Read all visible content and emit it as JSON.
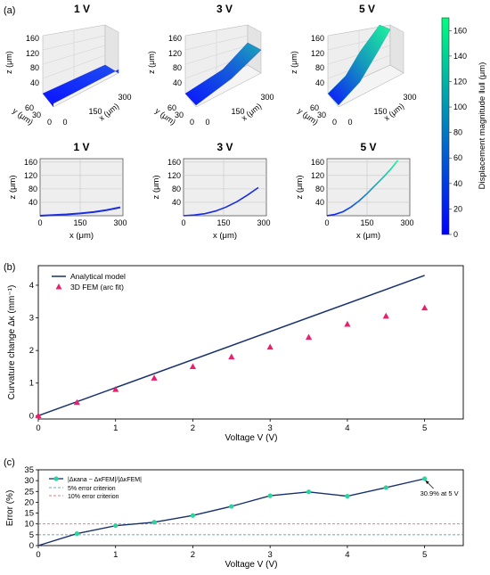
{
  "panel_labels": {
    "a": "(a)",
    "b": "(b)",
    "c": "(c)"
  },
  "panel_a": {
    "top_titles": [
      "1 V",
      "3 V",
      "5 V"
    ],
    "bottom_titles": [
      "1 V",
      "3 V",
      "5 V"
    ],
    "surface3d": {
      "z_ticks": [
        "160",
        "120",
        "80",
        "40"
      ],
      "z_label": "z (μm)",
      "y_ticks": [
        "60",
        "30",
        "0"
      ],
      "y_label": "y (μm)",
      "x_ticks": [
        "0",
        "150",
        "300"
      ],
      "x_label": "x (μm)"
    },
    "profile2d": {
      "z_ticks": [
        "160",
        "120",
        "80",
        "40"
      ],
      "z_label": "z (μm)",
      "x_ticks": [
        "0",
        "150",
        "300"
      ],
      "x_label": "x (μm)"
    },
    "colorbar": {
      "label": "Displacement magnitude ‖u‖ (μm)",
      "ticks": [
        "0",
        "20",
        "40",
        "60",
        "80",
        "100",
        "120",
        "140",
        "160"
      ],
      "range": [
        0,
        170
      ],
      "colors": [
        "#0000ff",
        "#00ff7f"
      ]
    }
  },
  "chart_data": [
    {
      "type": "line",
      "panel": "b",
      "xlabel": "Voltage V (V)",
      "ylabel": "Curvature change Δκ (mm⁻¹)",
      "xlim": [
        0,
        5.5
      ],
      "ylim": [
        -0.1,
        4.6
      ],
      "x_ticks": [
        0,
        1,
        2,
        3,
        4,
        5
      ],
      "y_ticks": [
        0,
        1,
        2,
        3,
        4
      ],
      "legend_position": "top-left",
      "series": [
        {
          "name": "Analytical model",
          "style": "line",
          "color": "#17306e",
          "x": [
            0,
            5
          ],
          "y": [
            0,
            4.3
          ]
        },
        {
          "name": "3D FEM (arc fit)",
          "style": "triangle",
          "color": "#e8216e",
          "x": [
            0,
            0.5,
            1,
            1.5,
            2,
            2.5,
            3,
            3.5,
            4,
            4.5,
            5
          ],
          "y": [
            0,
            0.4,
            0.8,
            1.15,
            1.5,
            1.8,
            2.1,
            2.4,
            2.8,
            3.05,
            3.3
          ]
        }
      ]
    },
    {
      "type": "line",
      "panel": "c",
      "xlabel": "Voltage V (V)",
      "ylabel": "Error (%)",
      "xlim": [
        0,
        5.5
      ],
      "ylim": [
        0,
        35
      ],
      "x_ticks": [
        0,
        1,
        2,
        3,
        4,
        5
      ],
      "y_ticks": [
        0,
        5,
        10,
        15,
        20,
        25,
        30,
        35
      ],
      "legend_position": "top-left",
      "series": [
        {
          "name": "|Δκana − ΔκFEM|/|ΔκFEM|",
          "style": "line-marker",
          "color": "#17306e",
          "marker_color": "#2bd49c",
          "x": [
            0,
            0.5,
            1,
            1.5,
            2,
            2.5,
            3,
            3.5,
            4,
            4.5,
            5
          ],
          "y": [
            0,
            5.5,
            9.2,
            10.8,
            13.9,
            18.1,
            23.0,
            24.8,
            22.8,
            26.8,
            30.9
          ]
        },
        {
          "name": "5% error criterion",
          "style": "dashed",
          "color": "#3a8a9a",
          "y_const": 5
        },
        {
          "name": "10% error criterion",
          "style": "dashed",
          "color": "#e05050",
          "y_const": 10
        }
      ],
      "annotation": {
        "text": "30.9% at 5 V",
        "x": 5,
        "y": 30.9
      }
    }
  ]
}
